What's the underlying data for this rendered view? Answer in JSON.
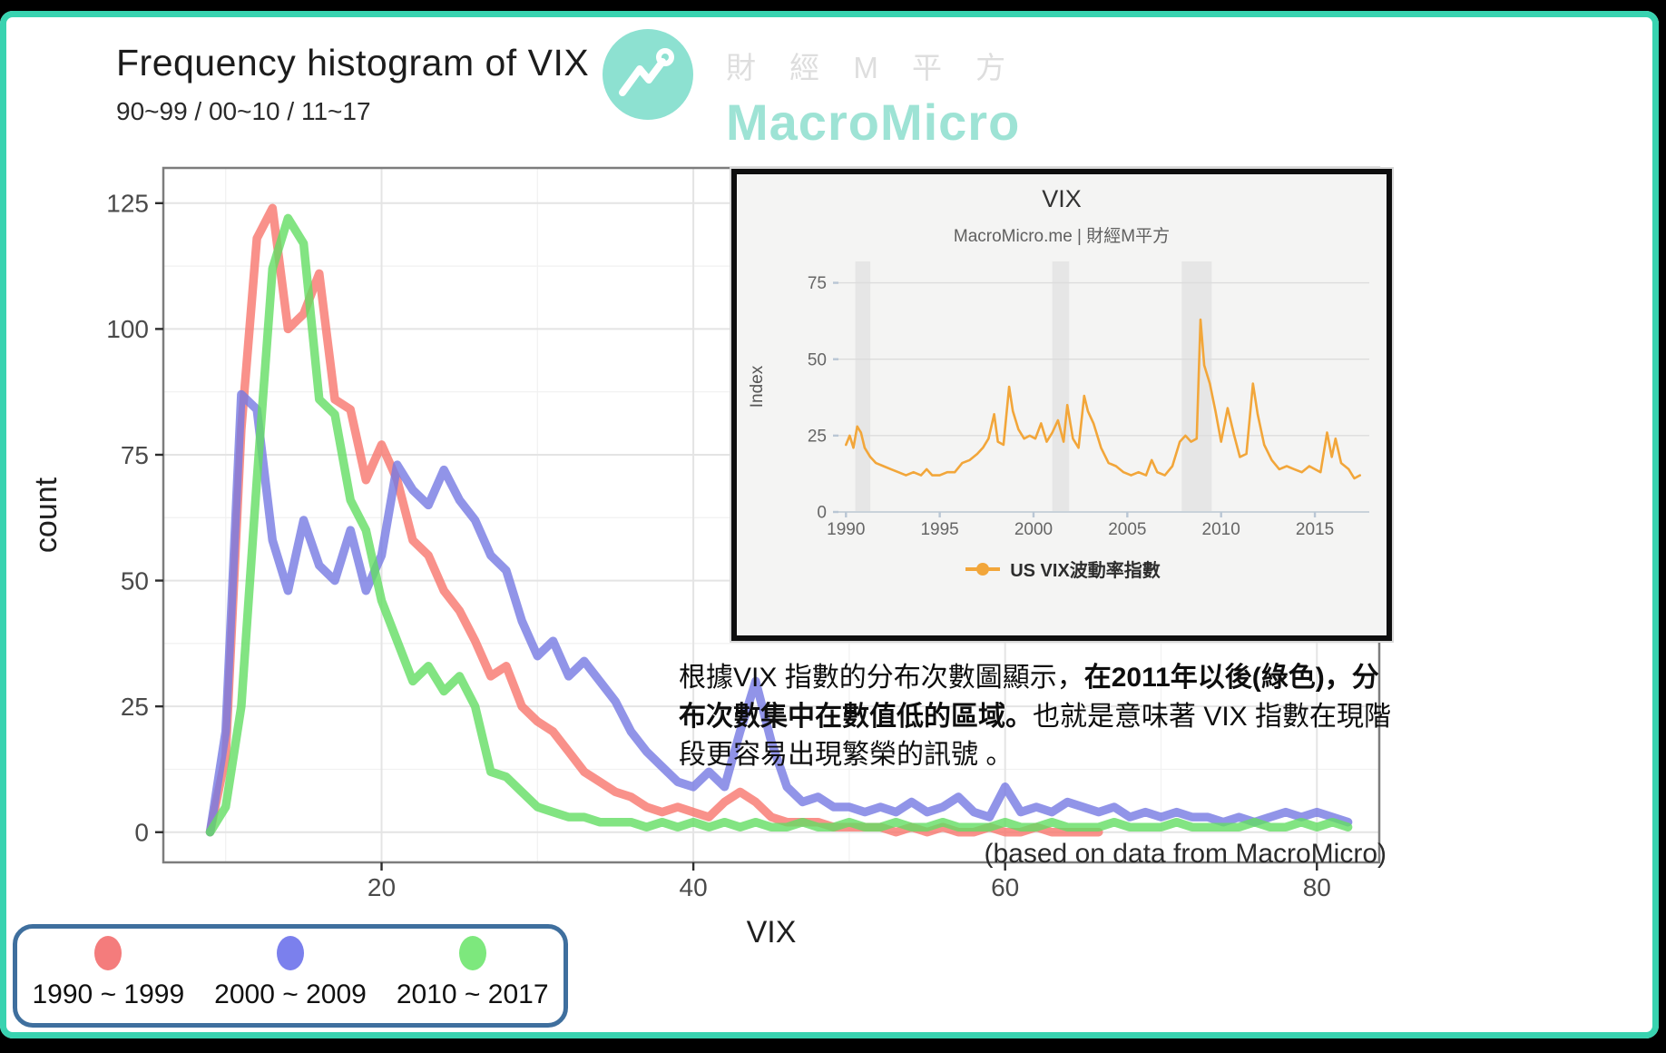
{
  "frame": {
    "border_color": "#38d3b0"
  },
  "header": {
    "title": "Frequency histogram of VIX",
    "subtitle": "90~99 / 00~10 / 11~17"
  },
  "logo": {
    "brand_cn": "財 經 M 平 方",
    "brand_en": "MacroMicro",
    "circle_color": "#8de1d1",
    "mark_color": "#ffffff",
    "text_color": "#9ee3d5",
    "cn_color": "#dedede"
  },
  "chart_data": [
    {
      "type": "line",
      "variant": "frequency-polygon",
      "title": "Frequency histogram of VIX",
      "subtitle": "90~99 / 00~10 / 11~17",
      "xlabel": "VIX",
      "ylabel": "count",
      "xlim": [
        6,
        84
      ],
      "ylim": [
        -6,
        132
      ],
      "xticks": [
        20,
        40,
        60,
        80
      ],
      "yticks": [
        0,
        25,
        50,
        75,
        100,
        125
      ],
      "grid": true,
      "legend_position": "bottom-left",
      "series": [
        {
          "name": "1990 ~ 1999",
          "color": "#f8766d",
          "x": [
            9,
            10,
            11,
            12,
            13,
            14,
            15,
            16,
            17,
            18,
            19,
            20,
            21,
            22,
            23,
            24,
            25,
            26,
            27,
            28,
            29,
            30,
            31,
            32,
            33,
            34,
            35,
            36,
            37,
            38,
            39,
            40,
            41,
            42,
            43,
            44,
            45,
            46,
            47,
            48,
            49,
            50,
            51,
            52,
            53,
            54,
            55,
            56,
            57,
            58,
            59,
            60,
            61,
            62,
            63,
            64,
            65,
            66
          ],
          "y": [
            0,
            15,
            80,
            118,
            124,
            100,
            103,
            111,
            86,
            84,
            70,
            77,
            70,
            58,
            55,
            48,
            44,
            38,
            31,
            33,
            25,
            22,
            20,
            16,
            12,
            10,
            8,
            7,
            5,
            4,
            5,
            4,
            3,
            6,
            8,
            6,
            3,
            2,
            2,
            2,
            1,
            1,
            1,
            1,
            0,
            1,
            0,
            1,
            0,
            0,
            1,
            0,
            0,
            1,
            0,
            0,
            0,
            0
          ]
        },
        {
          "name": "2000 ~ 2009",
          "color": "#7679e2",
          "x": [
            9,
            10,
            11,
            12,
            13,
            14,
            15,
            16,
            17,
            18,
            19,
            20,
            21,
            22,
            23,
            24,
            25,
            26,
            27,
            28,
            29,
            30,
            31,
            32,
            33,
            34,
            35,
            36,
            37,
            38,
            39,
            40,
            41,
            42,
            43,
            44,
            45,
            46,
            47,
            48,
            49,
            50,
            51,
            52,
            53,
            54,
            55,
            56,
            57,
            58,
            59,
            60,
            61,
            62,
            63,
            64,
            65,
            66,
            67,
            68,
            69,
            70,
            71,
            72,
            73,
            74,
            75,
            76,
            77,
            78,
            79,
            80,
            81,
            82
          ],
          "y": [
            0,
            20,
            87,
            84,
            58,
            48,
            62,
            53,
            50,
            60,
            48,
            55,
            73,
            68,
            65,
            72,
            66,
            62,
            55,
            52,
            42,
            35,
            38,
            31,
            34,
            30,
            26,
            20,
            16,
            13,
            10,
            9,
            12,
            9,
            20,
            30,
            18,
            9,
            6,
            7,
            5,
            5,
            4,
            5,
            4,
            6,
            4,
            5,
            7,
            4,
            3,
            9,
            4,
            5,
            4,
            6,
            5,
            4,
            5,
            3,
            4,
            3,
            4,
            3,
            3,
            2,
            3,
            2,
            3,
            4,
            3,
            4,
            3,
            2
          ]
        },
        {
          "name": "2010 ~ 2017",
          "color": "#63dd63",
          "x": [
            9,
            10,
            11,
            12,
            13,
            14,
            15,
            16,
            17,
            18,
            19,
            20,
            21,
            22,
            23,
            24,
            25,
            26,
            27,
            28,
            29,
            30,
            31,
            32,
            33,
            34,
            35,
            36,
            37,
            38,
            39,
            40,
            41,
            42,
            43,
            44,
            45,
            46,
            47,
            48,
            49,
            50,
            51,
            52,
            53,
            54,
            55,
            56,
            57,
            58,
            59,
            60,
            61,
            62,
            63,
            64,
            65,
            66,
            67,
            68,
            69,
            70,
            71,
            72,
            73,
            74,
            75,
            76,
            77,
            78,
            79,
            80,
            81,
            82
          ],
          "y": [
            0,
            5,
            25,
            70,
            112,
            122,
            117,
            86,
            83,
            66,
            60,
            46,
            38,
            30,
            33,
            28,
            31,
            25,
            12,
            11,
            8,
            5,
            4,
            3,
            3,
            2,
            2,
            2,
            1,
            2,
            1,
            2,
            1,
            2,
            1,
            2,
            1,
            1,
            2,
            1,
            1,
            2,
            1,
            1,
            2,
            1,
            1,
            2,
            1,
            1,
            1,
            2,
            1,
            1,
            2,
            1,
            1,
            1,
            2,
            1,
            1,
            1,
            2,
            1,
            1,
            1,
            1,
            2,
            1,
            1,
            2,
            1,
            2,
            1
          ]
        }
      ]
    },
    {
      "type": "line",
      "variant": "time-series",
      "title": "VIX",
      "subtitle": "MacroMicro.me | 財經M平方",
      "ylabel": "Index",
      "xlim": [
        1989.6,
        2017.9
      ],
      "ylim": [
        0,
        82
      ],
      "xticks": [
        1990,
        1995,
        2000,
        2005,
        2010,
        2015
      ],
      "yticks": [
        0,
        25,
        50,
        75
      ],
      "recession_bands": [
        [
          1990.5,
          1991.3
        ],
        [
          2001.0,
          2001.9
        ],
        [
          2007.9,
          2009.5
        ]
      ],
      "legend_label": "US VIX波動率指數",
      "series": [
        {
          "name": "US VIX波動率指數",
          "color": "#f2a63a",
          "x": [
            1990.0,
            1990.2,
            1990.4,
            1990.6,
            1990.8,
            1991.0,
            1991.3,
            1991.6,
            1992.0,
            1992.4,
            1992.8,
            1993.2,
            1993.6,
            1994.0,
            1994.3,
            1994.6,
            1995.0,
            1995.4,
            1995.8,
            1996.2,
            1996.6,
            1997.0,
            1997.3,
            1997.6,
            1997.9,
            1998.1,
            1998.4,
            1998.7,
            1998.9,
            1999.2,
            1999.5,
            1999.8,
            2000.1,
            2000.4,
            2000.7,
            2001.0,
            2001.3,
            2001.6,
            2001.8,
            2002.1,
            2002.4,
            2002.7,
            2002.9,
            2003.2,
            2003.6,
            2004.0,
            2004.4,
            2004.8,
            2005.2,
            2005.6,
            2006.0,
            2006.3,
            2006.6,
            2007.0,
            2007.4,
            2007.8,
            2008.1,
            2008.4,
            2008.7,
            2008.9,
            2009.1,
            2009.4,
            2009.7,
            2010.0,
            2010.35,
            2010.7,
            2011.0,
            2011.35,
            2011.7,
            2011.95,
            2012.3,
            2012.7,
            2013.1,
            2013.5,
            2013.9,
            2014.3,
            2014.7,
            2015.0,
            2015.3,
            2015.65,
            2015.9,
            2016.1,
            2016.4,
            2016.8,
            2017.1,
            2017.4
          ],
          "y": [
            22,
            25,
            21,
            28,
            26,
            21,
            18,
            16,
            15,
            14,
            13,
            12,
            13,
            12,
            14,
            12,
            12,
            13,
            13,
            16,
            17,
            19,
            21,
            24,
            32,
            23,
            22,
            41,
            33,
            27,
            24,
            25,
            24,
            29,
            23,
            26,
            30,
            23,
            35,
            24,
            21,
            38,
            33,
            29,
            21,
            16,
            15,
            13,
            12,
            13,
            12,
            17,
            13,
            12,
            15,
            23,
            25,
            23,
            24,
            63,
            48,
            42,
            33,
            23,
            34,
            25,
            18,
            19,
            42,
            32,
            22,
            17,
            14,
            15,
            14,
            13,
            15,
            14,
            13,
            26,
            18,
            24,
            16,
            14,
            11,
            12
          ]
        }
      ]
    }
  ],
  "legend": {
    "border_color": "#3f6f9e",
    "items": [
      {
        "label": "1990 ~ 1999",
        "color": "#f47c7c"
      },
      {
        "label": "2000 ~ 2009",
        "color": "#7b80ed"
      },
      {
        "label": "2010 ~ 2017",
        "color": "#7de87d"
      }
    ]
  },
  "annotation": {
    "part1": "根據VIX 指數的分布次數圖顯示，",
    "part2_bold": "在2011年以後(綠色)，分布次數集中在數值低的區域。",
    "part3": "也就是意味著 VIX 指數在現階段更容易出現繁榮的訊號 。"
  },
  "footer": {
    "credit": "(based on data from MacroMicro)"
  }
}
